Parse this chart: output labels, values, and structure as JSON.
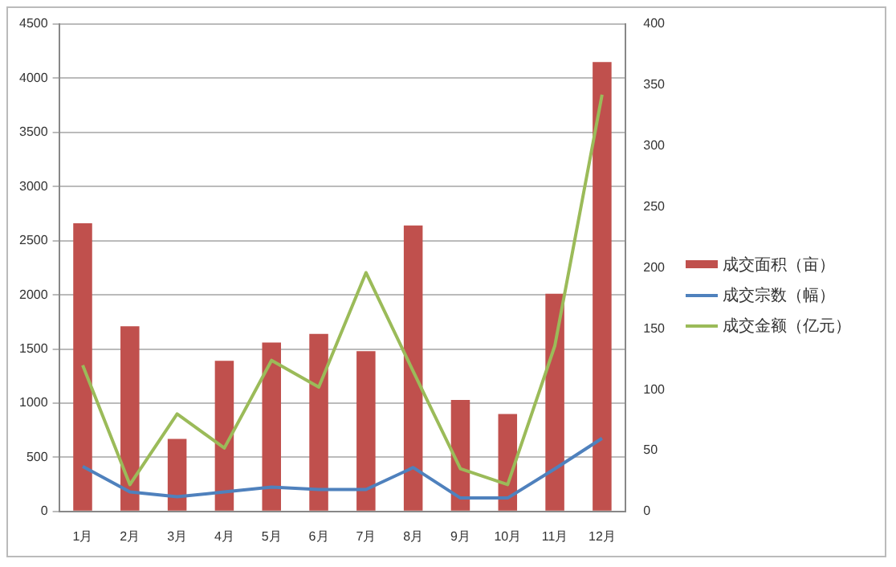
{
  "chart_data": {
    "type": "bar",
    "categories": [
      "1月",
      "2月",
      "3月",
      "4月",
      "5月",
      "6月",
      "7月",
      "8月",
      "9月",
      "10月",
      "11月",
      "12月"
    ],
    "series": [
      {
        "name": "成交面积（亩）",
        "color": "#c0504d",
        "values": [
          2660,
          1710,
          670,
          1390,
          1560,
          1640,
          1480,
          2640,
          1030,
          900,
          2010,
          4150
        ]
      },
      {
        "name": "成交宗数（幅）",
        "type": "line",
        "axis": "y2",
        "color": "#4f81bd",
        "values": [
          37,
          16,
          12,
          16,
          20,
          18,
          18,
          36,
          11,
          11,
          35,
          60
        ]
      },
      {
        "name": "成交金额（亿元）",
        "type": "line",
        "axis": "y2",
        "color": "#9bbb59",
        "values": [
          120,
          22,
          80,
          52,
          124,
          102,
          196,
          115,
          35,
          22,
          136,
          342
        ]
      }
    ],
    "ylim": [
      0,
      4500
    ],
    "yticks": [
      0,
      500,
      1000,
      1500,
      2000,
      2500,
      3000,
      3500,
      4000,
      4500
    ],
    "y2lim": [
      0,
      400
    ],
    "y2ticks": [
      0,
      50,
      100,
      150,
      200,
      250,
      300,
      350,
      400
    ],
    "grid": "y",
    "legend": "right",
    "marker": "none"
  }
}
